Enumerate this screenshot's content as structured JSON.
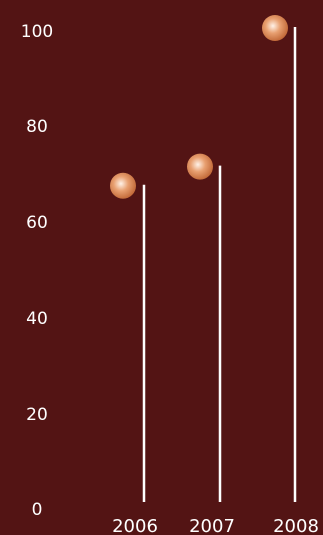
{
  "chart_data": {
    "type": "scatter",
    "title": "",
    "xlabel": "",
    "ylabel": "",
    "categories": [
      "2006",
      "2007",
      "2008"
    ],
    "values": [
      67,
      71,
      100
    ],
    "ylim": [
      0,
      100
    ],
    "yticks": [
      "0",
      "20",
      "40",
      "60",
      "80",
      "100"
    ],
    "grid": false,
    "legend": "none",
    "colors": {
      "background": "#531414",
      "text": "#ffffff",
      "stem": "#ffffff",
      "marker_highlight": "#fff2e8",
      "marker_mid": "#e8a071",
      "marker_edge": "#bf6534"
    }
  }
}
